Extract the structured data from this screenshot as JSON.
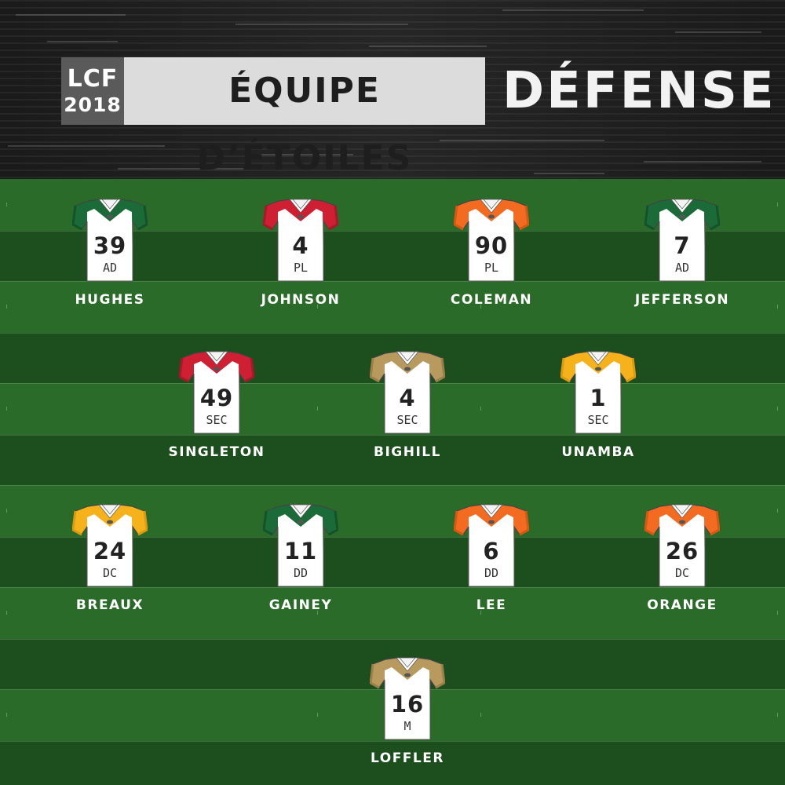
{
  "header": {
    "league": "LCF",
    "year": "2018",
    "title": "ÉQUIPE D’ÉTOILES",
    "section": "DÉFENSE"
  },
  "players": [
    {
      "name": "HUGHES",
      "number": "39",
      "position": "AD",
      "primary": "#1b6b38",
      "yoke": "#13522a"
    },
    {
      "name": "JOHNSON",
      "number": "4",
      "position": "PL",
      "primary": "#cf1f33",
      "yoke": "#a8172a"
    },
    {
      "name": "COLEMAN",
      "number": "90",
      "position": "PL",
      "primary": "#f36b21",
      "yoke": "#d95710"
    },
    {
      "name": "JEFFERSON",
      "number": "7",
      "position": "AD",
      "primary": "#1b6b38",
      "yoke": "#13522a"
    },
    {
      "name": "SINGLETON",
      "number": "49",
      "position": "SEC",
      "primary": "#cf1f33",
      "yoke": "#a8172a"
    },
    {
      "name": "BIGHILL",
      "number": "4",
      "position": "SEC",
      "primary": "#b89a5e",
      "yoke": "#9a7f4a"
    },
    {
      "name": "UNAMBA",
      "number": "1",
      "position": "SEC",
      "primary": "#f5b21b",
      "yoke": "#dc9a10"
    },
    {
      "name": "BREAUX",
      "number": "24",
      "position": "DC",
      "primary": "#f5b21b",
      "yoke": "#dc9a10"
    },
    {
      "name": "GAINEY",
      "number": "11",
      "position": "DD",
      "primary": "#1b6b38",
      "yoke": "#13522a"
    },
    {
      "name": "LEE",
      "number": "6",
      "position": "DD",
      "primary": "#f36b21",
      "yoke": "#d95710"
    },
    {
      "name": "ORANGE",
      "number": "26",
      "position": "DC",
      "primary": "#f36b21",
      "yoke": "#d95710"
    },
    {
      "name": "LOFFLER",
      "number": "16",
      "position": "M",
      "primary": "#b89a5e",
      "yoke": "#9a7f4a"
    }
  ],
  "colors": {
    "field_light": "#2b6b2a",
    "field_dark": "#1d4e1e",
    "header_bg": "#1c1c1c",
    "badge_bg": "#5a5a5a",
    "title_bg": "#dcdcdc"
  }
}
